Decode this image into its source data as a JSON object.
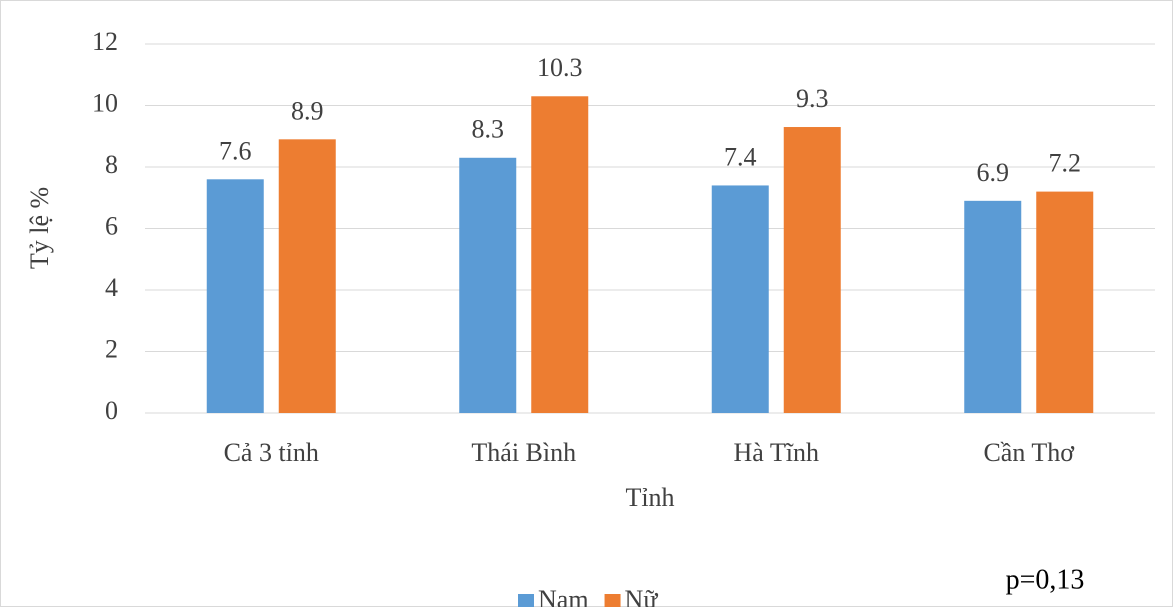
{
  "chart_data": {
    "type": "bar",
    "categories": [
      "Cả 3 tỉnh",
      "Thái Bình",
      "Hà Tĩnh",
      "Cần Thơ"
    ],
    "series": [
      {
        "name": "Nam",
        "color": "#5b9bd5",
        "values": [
          7.6,
          8.3,
          7.4,
          6.9
        ]
      },
      {
        "name": "Nữ",
        "color": "#ed7d31",
        "values": [
          8.9,
          10.3,
          9.3,
          7.2
        ]
      }
    ],
    "ylabel": "Tỷ lệ %",
    "xlabel": "Tỉnh",
    "annotation": "p=0,13",
    "ylim": [
      0,
      12
    ],
    "yticks": [
      0,
      2,
      4,
      6,
      8,
      10,
      12
    ],
    "grid": true,
    "legend": "bottom",
    "data_labels": true
  }
}
